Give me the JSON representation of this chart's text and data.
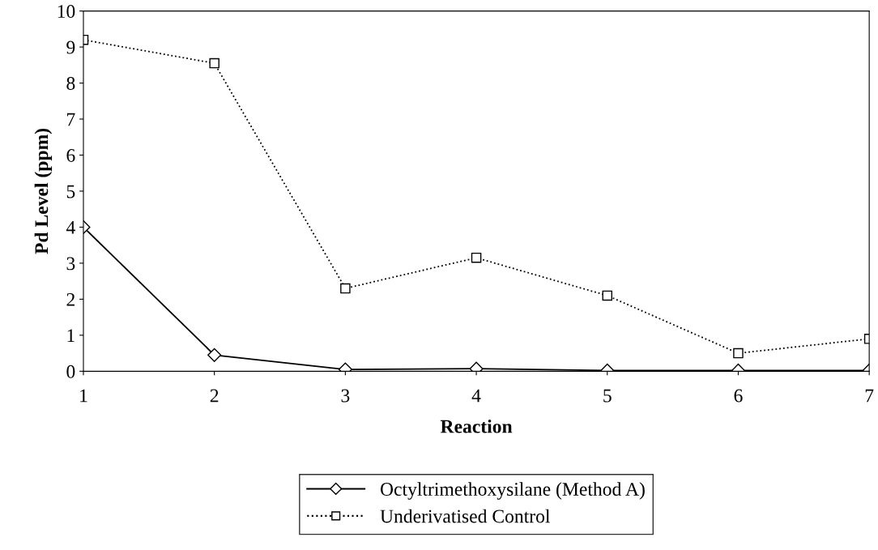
{
  "chart_data": {
    "type": "line",
    "xlabel": "Reaction",
    "ylabel": "Pd Level (ppm)",
    "x": [
      1,
      2,
      3,
      4,
      5,
      6,
      7
    ],
    "xlim": [
      1,
      7
    ],
    "xticks": [
      1,
      2,
      3,
      4,
      5,
      6,
      7
    ],
    "ylim": [
      0,
      10
    ],
    "yticks": [
      0,
      1,
      2,
      3,
      4,
      5,
      6,
      7,
      8,
      9,
      10
    ],
    "grid": false,
    "legend": "bottom",
    "series": [
      {
        "name": "Octyltrimethoxysilane (Method A)",
        "color": "#000000",
        "marker": "diamond",
        "line_style": "solid",
        "values": [
          4.0,
          0.45,
          0.05,
          0.07,
          0.02,
          0.02,
          0.02
        ]
      },
      {
        "name": "Underivatised Control",
        "color": "#000000",
        "marker": "square",
        "line_style": "dotted",
        "values": [
          9.2,
          8.55,
          2.3,
          3.15,
          2.1,
          0.5,
          0.9
        ]
      }
    ]
  }
}
